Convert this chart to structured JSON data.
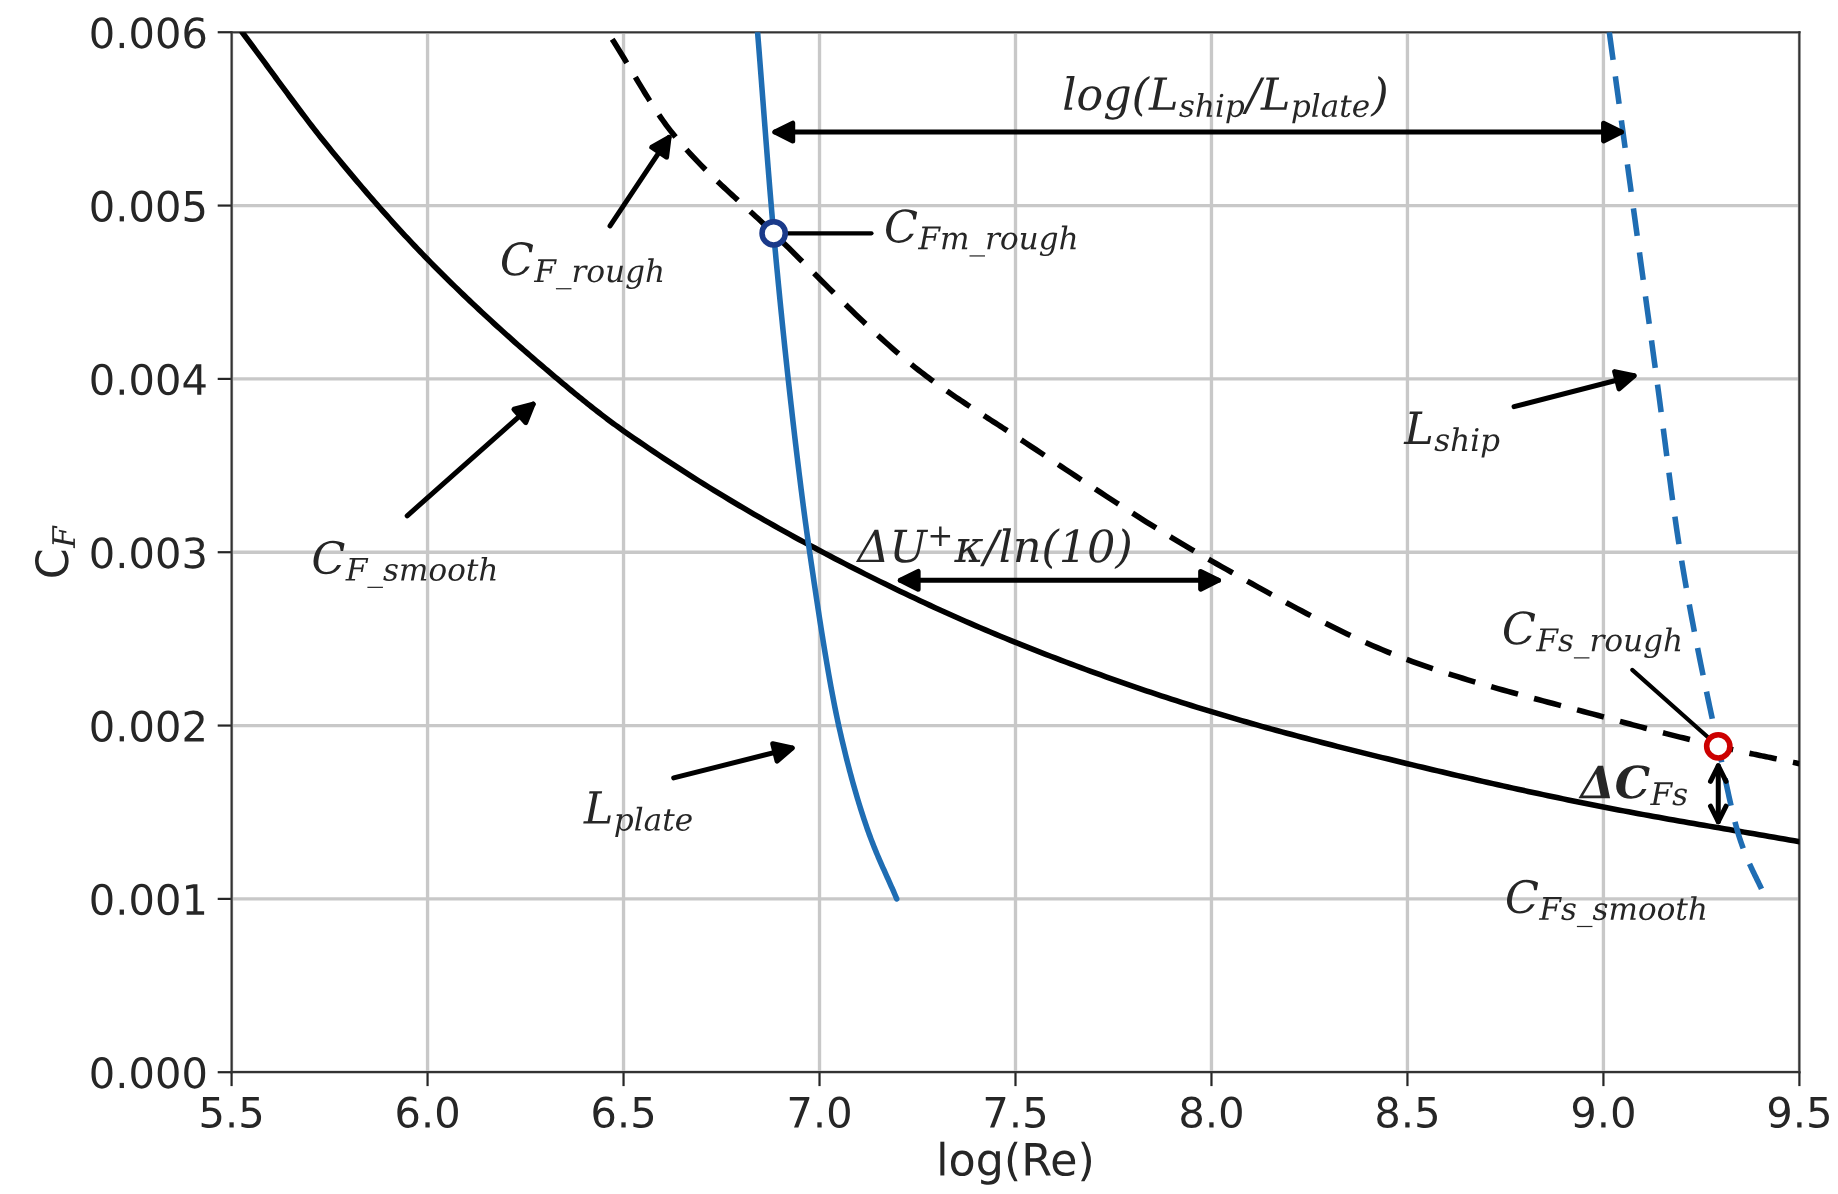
{
  "chart_data": {
    "type": "line",
    "xlabel": "log(Re)",
    "ylabel": "C$_{F}$",
    "xlim": [
      5.5,
      9.5
    ],
    "xticks": [
      5.5,
      {
        "value": 6,
        "label": "6.0"
      },
      6.5,
      {
        "value": 7,
        "label": "7.0"
      },
      7.5,
      {
        "value": 8,
        "label": "8.0"
      },
      8.5,
      {
        "value": 9,
        "label": "9.0"
      },
      9.5
    ],
    "ylim": [
      0.0,
      0.006
    ],
    "yticks": [
      {
        "value": 0.0,
        "label": "0.000"
      },
      {
        "value": 0.001,
        "label": "0.001"
      },
      {
        "value": 0.002,
        "label": "0.002"
      },
      {
        "value": 0.003,
        "label": "0.003"
      },
      {
        "value": 0.004,
        "label": "0.004"
      },
      {
        "value": 0.005,
        "label": "0.005"
      },
      {
        "value": 0.006,
        "label": "0.006"
      }
    ],
    "grid": true,
    "legend": false,
    "marker": "none",
    "series": [
      {
        "color": "#000000",
        "line_style": "solid",
        "x": [
          5.527,
          5.75,
          6.0,
          6.3,
          6.5,
          7.0,
          7.5,
          8.0,
          8.5,
          9.0,
          9.5
        ],
        "values": [
          0.006,
          0.00533,
          0.00469,
          0.00406,
          0.0037,
          0.00301,
          0.00248,
          0.00208,
          0.00178,
          0.00153,
          0.00133
        ]
      },
      {
        "color": "#000000",
        "line_style": "dashed",
        "x": [
          6.471,
          6.624,
          6.883,
          7.253,
          7.5,
          8.0,
          8.5,
          9.0,
          9.293,
          9.5
        ],
        "values": [
          0.00596,
          0.00542,
          0.00484,
          0.00405,
          0.00367,
          0.00295,
          0.00238,
          0.00205,
          0.00188,
          0.00178
        ]
      },
      {
        "color": "#1f6db3",
        "line_style": "solid",
        "x": [
          6.842,
          6.883,
          6.93,
          6.973,
          7.049,
          7.121,
          7.197
        ],
        "values": [
          0.006,
          0.00484,
          0.0038,
          0.00303,
          0.002,
          0.00141,
          0.001
        ]
      },
      {
        "color": "#1f6db3",
        "line_style": "dashed",
        "x": [
          9.015,
          9.136,
          9.196,
          9.293,
          9.349,
          9.413
        ],
        "values": [
          0.006,
          0.004,
          0.003,
          0.00188,
          0.00134,
          0.00101
        ]
      },
      {
        "type": "scatter",
        "color": "#1a3a8a",
        "marker": "circle",
        "x": [
          6.883
        ],
        "values": [
          0.00484
        ]
      },
      {
        "type": "scatter",
        "color": "#cc0000",
        "marker": "circle",
        "x": [
          9.293
        ],
        "values": [
          0.00188
        ]
      }
    ],
    "annotations": [
      {
        "text": "C$_{F_rough}$",
        "x": 6.624,
        "y": 0.00542
      },
      "C$_{F_smooth}$",
      {
        "text": "C$_{Fm_rough}$",
        "x": 6.883,
        "y": 0.00484
      },
      "L$_{ship}$",
      "L$_{plate}$",
      {
        "text": "C$_{Fs_rough}$",
        "x": 9.293,
        "y": 0.00188
      },
      {
        "text": "C$_{Fs_smooth}$",
        "x": 9.293,
        "y": 0.00142
      },
      "log(L$_{ship}$/L$_{plate}$)",
      "ΔU$^{+}$κ/ln(10)",
      {
        "text": "ΔC$_{Fs}$",
        "x": 9.293,
        "y": 0.00165
      }
    ]
  }
}
